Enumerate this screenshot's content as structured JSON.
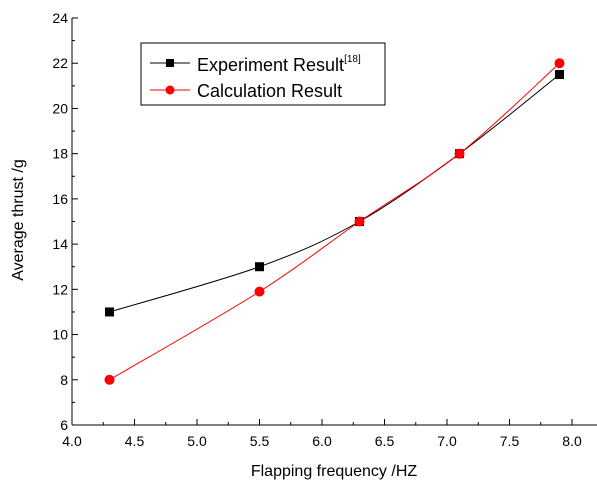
{
  "chart_data": {
    "type": "line",
    "xlabel": "Flapping frequency /HZ",
    "ylabel": "Average thrust /g",
    "xlim": [
      4.0,
      8.2
    ],
    "ylim": [
      6,
      24
    ],
    "xticks": [
      "4.0",
      "4.5",
      "5.0",
      "5.5",
      "6.0",
      "6.5",
      "7.0",
      "7.5",
      "8.0"
    ],
    "yticks": [
      "6",
      "8",
      "10",
      "12",
      "14",
      "16",
      "18",
      "20",
      "22",
      "24"
    ],
    "grid": false,
    "legend_position": "top-left",
    "series": [
      {
        "name": "Experiment Result",
        "name_superscript": "[18]",
        "color": "#000000",
        "marker": "square",
        "x": [
          4.3,
          5.5,
          6.3,
          7.1,
          7.9
        ],
        "y": [
          11.0,
          13.0,
          15.0,
          18.0,
          21.5
        ]
      },
      {
        "name": "Calculation Result",
        "color": "#ff0000",
        "marker": "circle",
        "x": [
          4.3,
          5.5,
          6.3,
          7.1,
          7.9
        ],
        "y": [
          8.0,
          11.9,
          15.0,
          18.0,
          22.0
        ]
      }
    ]
  }
}
